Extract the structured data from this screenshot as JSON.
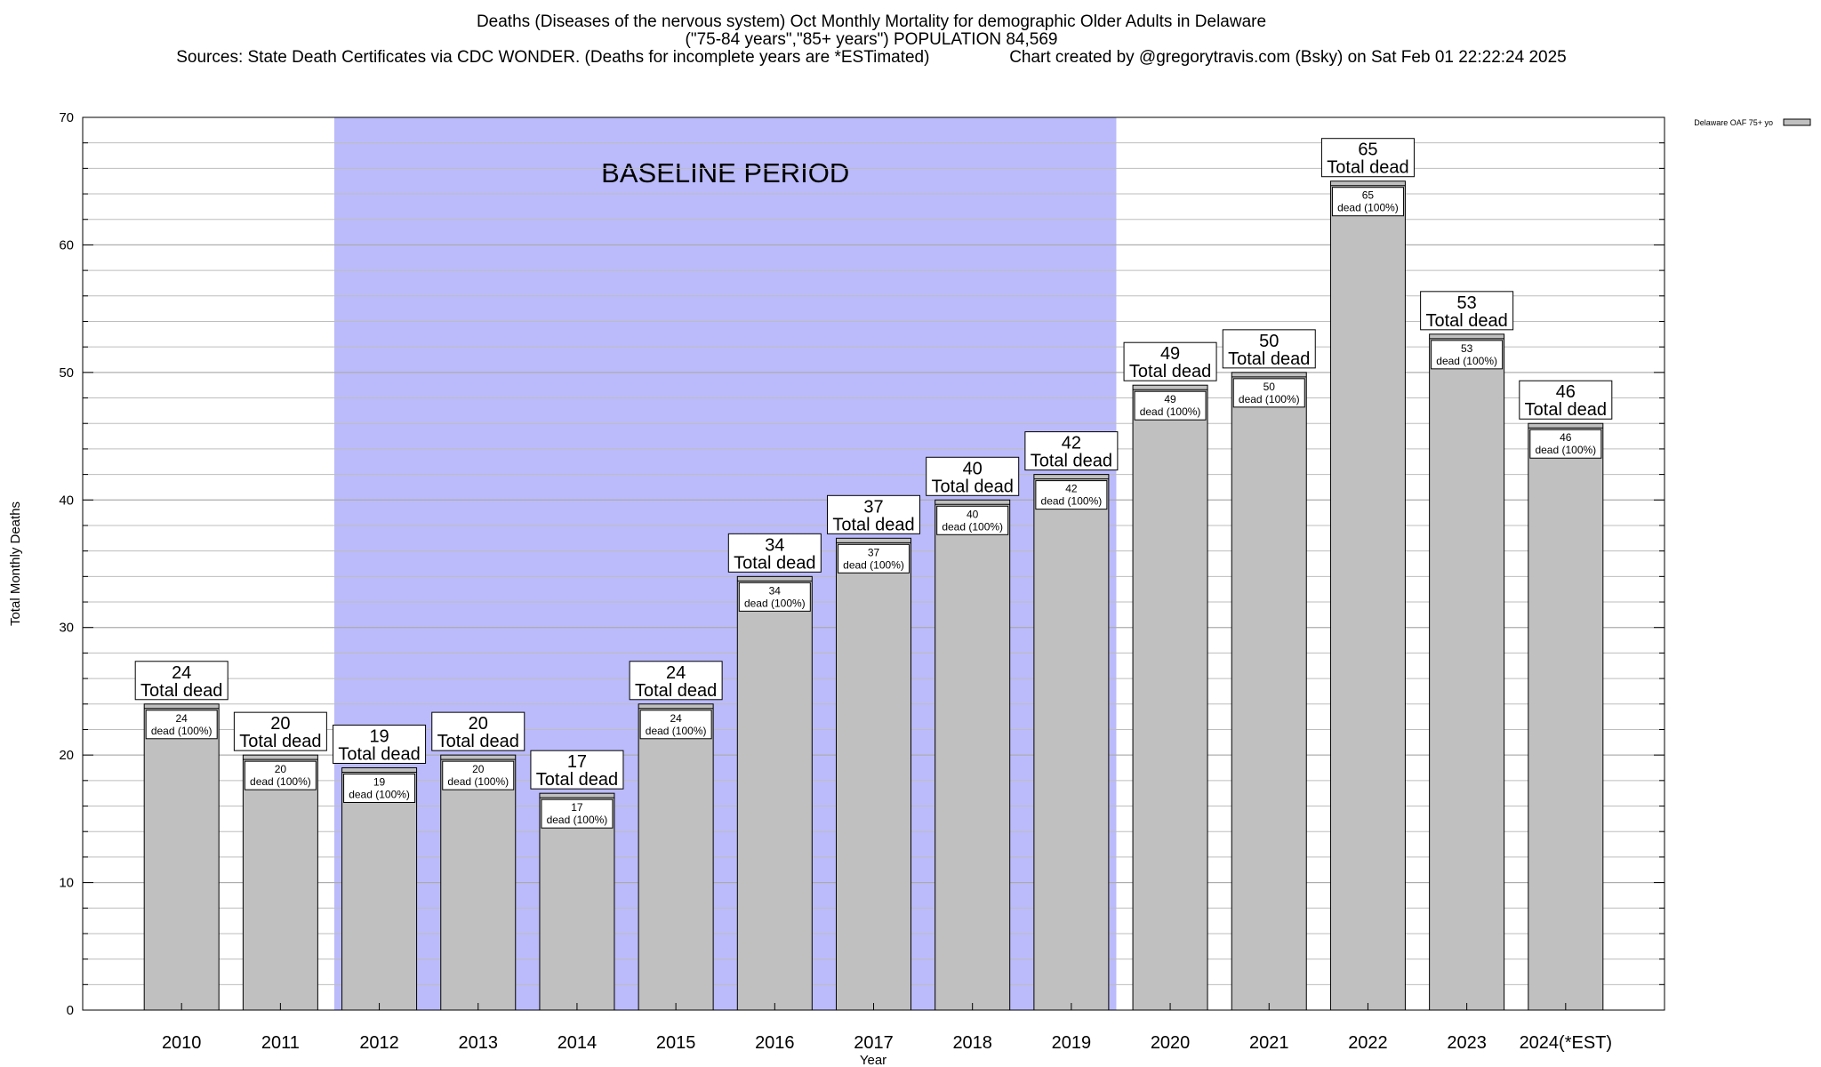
{
  "title_lines": [
    "Deaths (Diseases of the nervous system) Oct Monthly Mortality for demographic Older Adults in Delaware",
    "(\"75-84 years\",\"85+ years\") POPULATION 84,569",
    "Sources: State Death Certificates via CDC WONDER. (Deaths for incomplete years are *ESTimated)                 Chart created by @gregorytravis.com (Bsky) on Sat Feb 01 22:22:24 2025"
  ],
  "colors": {
    "bar_fill": "#c0c0c0",
    "baseline_fill": "#bbbbfb",
    "grid": "#bdbdbd"
  },
  "chart_data": {
    "type": "bar",
    "xlabel": "Year",
    "ylabel": "Total Monthly Deaths",
    "ylim": [
      0,
      70
    ],
    "yticks": [
      0,
      10,
      20,
      30,
      40,
      50,
      60,
      70
    ],
    "minor_grid_step": 2,
    "grid": true,
    "legend": {
      "position": "top-right",
      "entries": [
        "Delaware OAF 75+ yo"
      ]
    },
    "categories": [
      "2010",
      "2011",
      "2012",
      "2013",
      "2014",
      "2015",
      "2016",
      "2017",
      "2018",
      "2019",
      "2020",
      "2021",
      "2022",
      "2023",
      "2024(*EST)"
    ],
    "series": [
      {
        "name": "Delaware OAF 75+ yo",
        "values": [
          24,
          20,
          19,
          20,
          17,
          24,
          34,
          37,
          40,
          42,
          49,
          50,
          65,
          53,
          46
        ]
      }
    ],
    "bar_top_label_suffix": "Total dead",
    "bar_inner_label_suffix": "dead (100%)",
    "annotation": {
      "text": "BASELINE PERIOD",
      "from_category": "2012",
      "to_category": "2019"
    }
  }
}
